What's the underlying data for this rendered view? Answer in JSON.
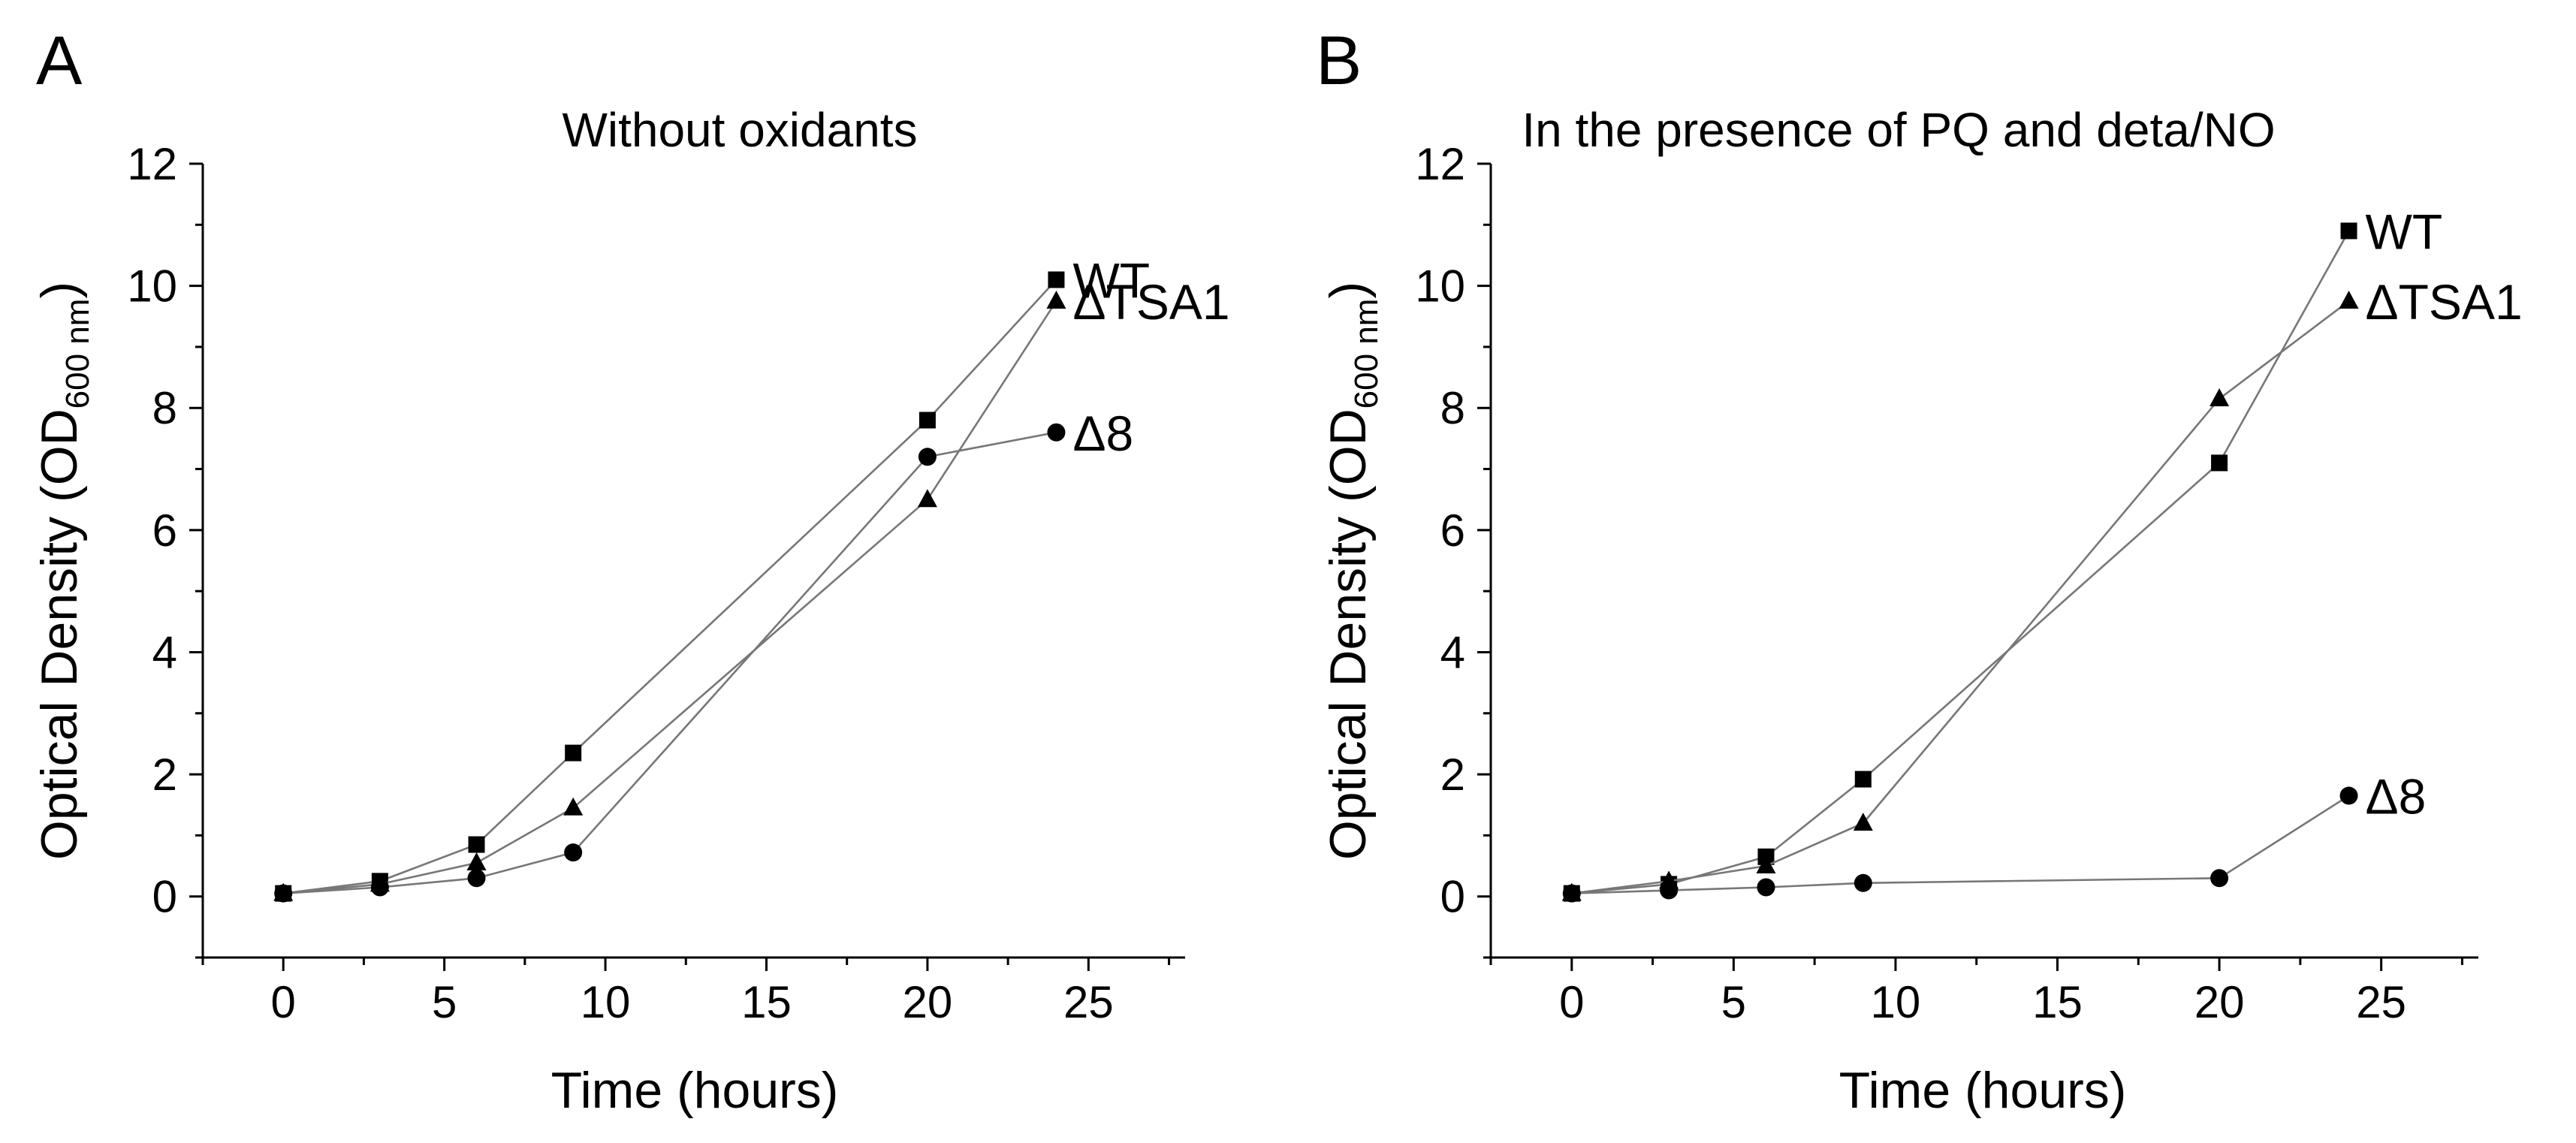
{
  "figure": {
    "panels": [
      {
        "letter": "A",
        "ylabel_main": "Optical Density (OD",
        "ylabel_sub": "600 nm",
        "ylabel_close": ")"
      },
      {
        "letter": "B",
        "ylabel_main": "Optical Density (OD",
        "ylabel_sub": "600 nm",
        "ylabel_close": ")"
      }
    ]
  },
  "chart_data": [
    {
      "type": "line",
      "title": "Without oxidants",
      "xlabel": "Time (hours)",
      "ylabel": "Optical Density (OD600 nm)",
      "xlim": [
        -2.5,
        28
      ],
      "ylim": [
        -1,
        12
      ],
      "xticks": [
        0,
        5,
        10,
        15,
        20,
        25
      ],
      "yticks": [
        0,
        2,
        4,
        6,
        8,
        10,
        12
      ],
      "x": [
        0,
        3,
        6,
        9,
        20,
        24
      ],
      "series": [
        {
          "name": "WT",
          "label": "WT",
          "marker": "square",
          "values": [
            0.05,
            0.25,
            0.85,
            2.35,
            7.8,
            10.1
          ]
        },
        {
          "name": "ΔTSA1",
          "label": "ΔTSA1",
          "marker": "triangle",
          "values": [
            0.05,
            0.2,
            0.55,
            1.45,
            6.5,
            9.75
          ]
        },
        {
          "name": "Δ8",
          "label": "Δ8",
          "marker": "circle",
          "values": [
            0.05,
            0.15,
            0.3,
            0.72,
            7.2,
            7.6
          ]
        }
      ]
    },
    {
      "type": "line",
      "title": "In the presence of PQ and deta/NO",
      "xlabel": "Time (hours)",
      "ylabel": "Optical Density (OD600 nm)",
      "xlim": [
        -2.5,
        28
      ],
      "ylim": [
        -1,
        12
      ],
      "xticks": [
        0,
        5,
        10,
        15,
        20,
        25
      ],
      "yticks": [
        0,
        2,
        4,
        6,
        8,
        10,
        12
      ],
      "x": [
        0,
        3,
        6,
        9,
        20,
        24
      ],
      "series": [
        {
          "name": "WT",
          "label": "WT",
          "marker": "square",
          "values": [
            0.05,
            0.2,
            0.65,
            1.92,
            7.1,
            10.9
          ]
        },
        {
          "name": "ΔTSA1",
          "label": "ΔTSA1",
          "marker": "triangle",
          "values": [
            0.05,
            0.25,
            0.5,
            1.2,
            8.15,
            9.75
          ]
        },
        {
          "name": "Δ8",
          "label": "Δ8",
          "marker": "circle",
          "values": [
            0.05,
            0.1,
            0.15,
            0.22,
            0.3,
            1.65
          ]
        }
      ]
    }
  ]
}
